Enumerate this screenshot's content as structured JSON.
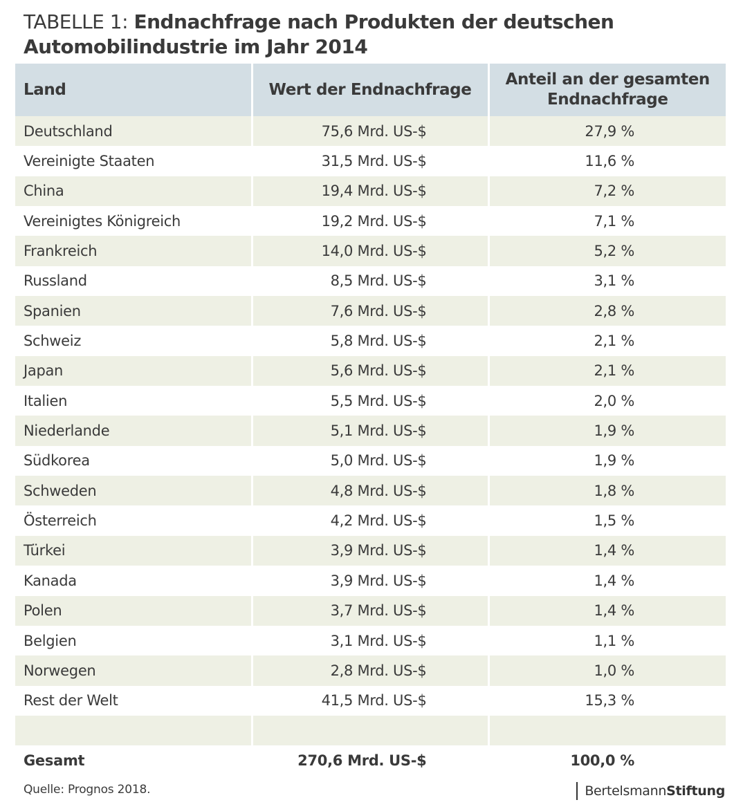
{
  "title": {
    "prefix": "TABELLE 1:",
    "main": "Endnachfrage nach Produkten der deutschen Automobilindustrie im Jahr 2014"
  },
  "chart_data": {
    "type": "table",
    "columns": [
      "Land",
      "Wert der Endnachfrage",
      "Anteil an der gesamten Endnachfrage"
    ],
    "rows": [
      {
        "land": "Deutschland",
        "wert": "75,6 Mrd. US-$",
        "anteil": "27,9 %"
      },
      {
        "land": "Vereinigte Staaten",
        "wert": "31,5 Mrd. US-$",
        "anteil": "11,6 %"
      },
      {
        "land": "China",
        "wert": "19,4 Mrd. US-$",
        "anteil": "7,2 %"
      },
      {
        "land": "Vereinigtes Königreich",
        "wert": "19,2 Mrd. US-$",
        "anteil": "7,1 %"
      },
      {
        "land": "Frankreich",
        "wert": "14,0 Mrd. US-$",
        "anteil": "5,2 %"
      },
      {
        "land": "Russland",
        "wert": "8,5 Mrd. US-$",
        "anteil": "3,1 %"
      },
      {
        "land": "Spanien",
        "wert": "7,6 Mrd. US-$",
        "anteil": "2,8 %"
      },
      {
        "land": "Schweiz",
        "wert": "5,8 Mrd. US-$",
        "anteil": "2,1 %"
      },
      {
        "land": "Japan",
        "wert": "5,6 Mrd. US-$",
        "anteil": "2,1 %"
      },
      {
        "land": "Italien",
        "wert": "5,5 Mrd. US-$",
        "anteil": "2,0 %"
      },
      {
        "land": "Niederlande",
        "wert": "5,1 Mrd. US-$",
        "anteil": "1,9 %"
      },
      {
        "land": "Südkorea",
        "wert": "5,0 Mrd. US-$",
        "anteil": "1,9 %"
      },
      {
        "land": "Schweden",
        "wert": "4,8 Mrd. US-$",
        "anteil": "1,8 %"
      },
      {
        "land": "Österreich",
        "wert": "4,2 Mrd. US-$",
        "anteil": "1,5 %"
      },
      {
        "land": "Türkei",
        "wert": "3,9 Mrd. US-$",
        "anteil": "1,4 %"
      },
      {
        "land": "Kanada",
        "wert": "3,9 Mrd. US-$",
        "anteil": "1,4 %"
      },
      {
        "land": "Polen",
        "wert": "3,7 Mrd. US-$",
        "anteil": "1,4 %"
      },
      {
        "land": "Belgien",
        "wert": "3,1 Mrd. US-$",
        "anteil": "1,1 %"
      },
      {
        "land": "Norwegen",
        "wert": "2,8 Mrd. US-$",
        "anteil": "1,0 %"
      },
      {
        "land": "Rest der Welt",
        "wert": "41,5 Mrd. US-$",
        "anteil": "15,3 %"
      }
    ],
    "total": {
      "land": "Gesamt",
      "wert": "270,6 Mrd. US-$",
      "anteil": "100,0 %"
    }
  },
  "source": "Quelle: Prognos 2018.",
  "logo": {
    "part1": "Bertelsmann",
    "part2": "Stiftung"
  },
  "colors": {
    "header_bg": "#d3dee4",
    "shaded_row_bg": "#eef0e4",
    "text": "#3a3a3a"
  }
}
